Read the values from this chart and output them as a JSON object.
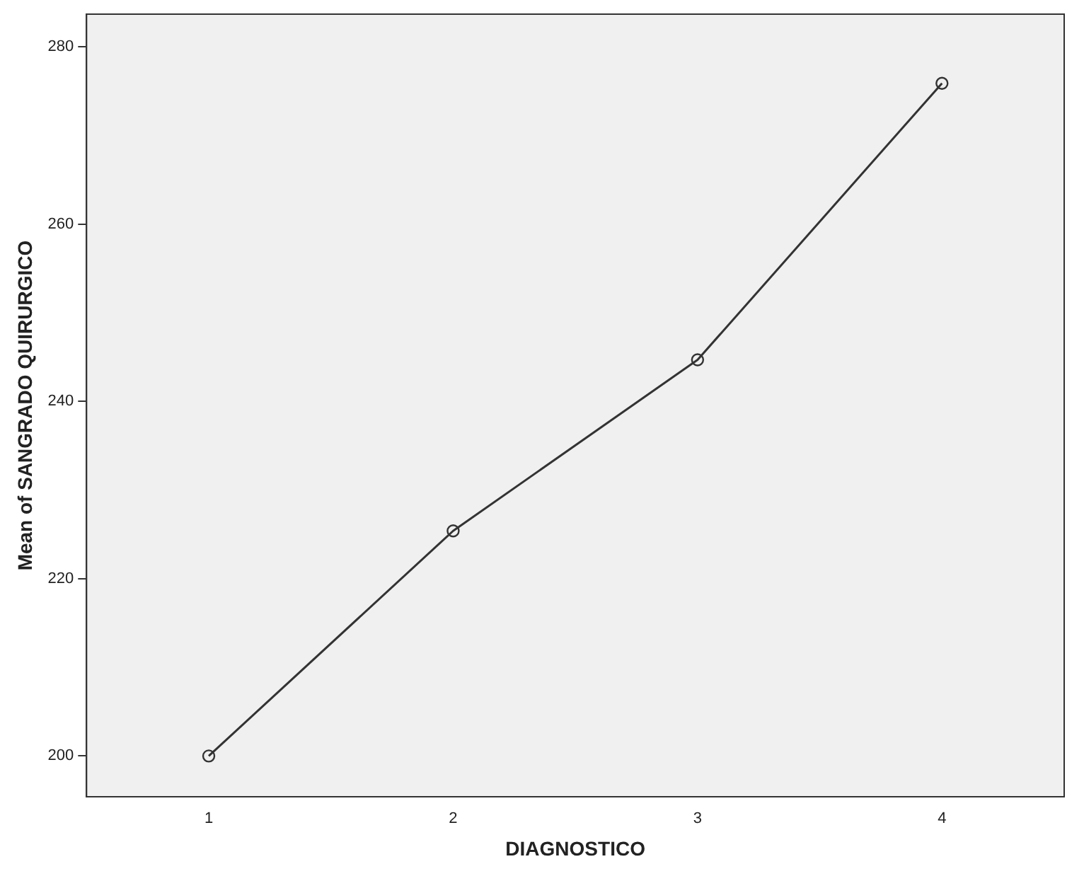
{
  "chart_data": {
    "type": "line",
    "xlabel": "DIAGNOSTICO",
    "ylabel": "Mean of SANGRADO QUIRURGICO",
    "categories": [
      "1",
      "2",
      "3",
      "4"
    ],
    "series": [
      {
        "color": "#333333",
        "values": [
          200,
          225.4,
          244.7,
          275.9
        ]
      }
    ],
    "ylim": [
      195.4,
      283.7
    ],
    "yticks": [
      200,
      220,
      240,
      260,
      280
    ],
    "grid": false,
    "legend": false,
    "marker": "circle",
    "line_style": "solid"
  }
}
